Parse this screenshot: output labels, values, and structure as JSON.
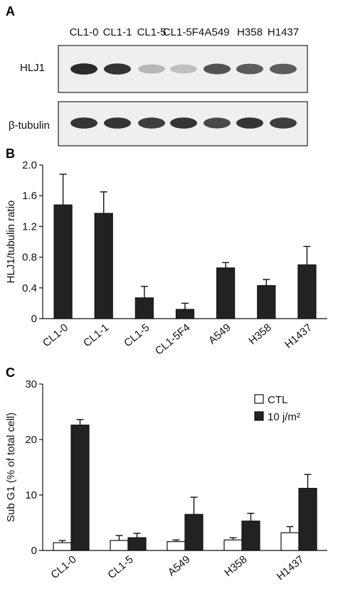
{
  "panels": {
    "a": {
      "letter": "A",
      "lanes": [
        "CL1-0",
        "CL1-1",
        "CL1-5",
        "CL1-5F4",
        "A549",
        "H358",
        "H1437"
      ],
      "blots": [
        {
          "label": "HLJ1",
          "intensity": [
            0.95,
            0.9,
            0.25,
            0.2,
            0.75,
            0.7,
            0.7
          ]
        },
        {
          "label": "β-tubulin",
          "intensity": [
            0.9,
            0.9,
            0.85,
            0.9,
            0.8,
            0.9,
            0.85
          ]
        }
      ]
    },
    "b": {
      "letter": "B"
    },
    "c": {
      "letter": "C"
    }
  },
  "chart_data": [
    {
      "type": "bar",
      "panel": "B",
      "categories": [
        "CL1-0",
        "CL1-1",
        "CL1-5",
        "CL1-5F4",
        "A549",
        "H358",
        "H1437"
      ],
      "values": [
        1.48,
        1.37,
        0.27,
        0.12,
        0.66,
        0.43,
        0.7
      ],
      "errors": [
        0.4,
        0.28,
        0.15,
        0.08,
        0.07,
        0.08,
        0.24
      ],
      "ylabel": "HLJ1/tubulin ratio",
      "ylim": [
        0,
        2.0
      ],
      "yticks": [
        "0",
        "0.4",
        "0.8",
        "1.2",
        "1.6",
        "2.0"
      ],
      "color": "#222222"
    },
    {
      "type": "bar",
      "panel": "C",
      "categories": [
        "CL1-0",
        "CL1-5",
        "A549",
        "H358",
        "H1437"
      ],
      "series": [
        {
          "name": "CTL",
          "values": [
            1.4,
            1.8,
            1.6,
            1.9,
            3.2
          ],
          "errors": [
            0.4,
            0.9,
            0.3,
            0.4,
            1.1
          ],
          "color": "#ffffff"
        },
        {
          "name": "10 j/m²",
          "values": [
            22.6,
            2.3,
            6.5,
            5.3,
            11.2
          ],
          "errors": [
            1.0,
            0.8,
            3.1,
            1.4,
            2.5
          ],
          "color": "#222222"
        }
      ],
      "ylabel": "Sub G1 (% of total cell)",
      "ylim": [
        0,
        30
      ],
      "yticks": [
        "0",
        "10",
        "20",
        "30"
      ],
      "legend": "top-right"
    }
  ]
}
